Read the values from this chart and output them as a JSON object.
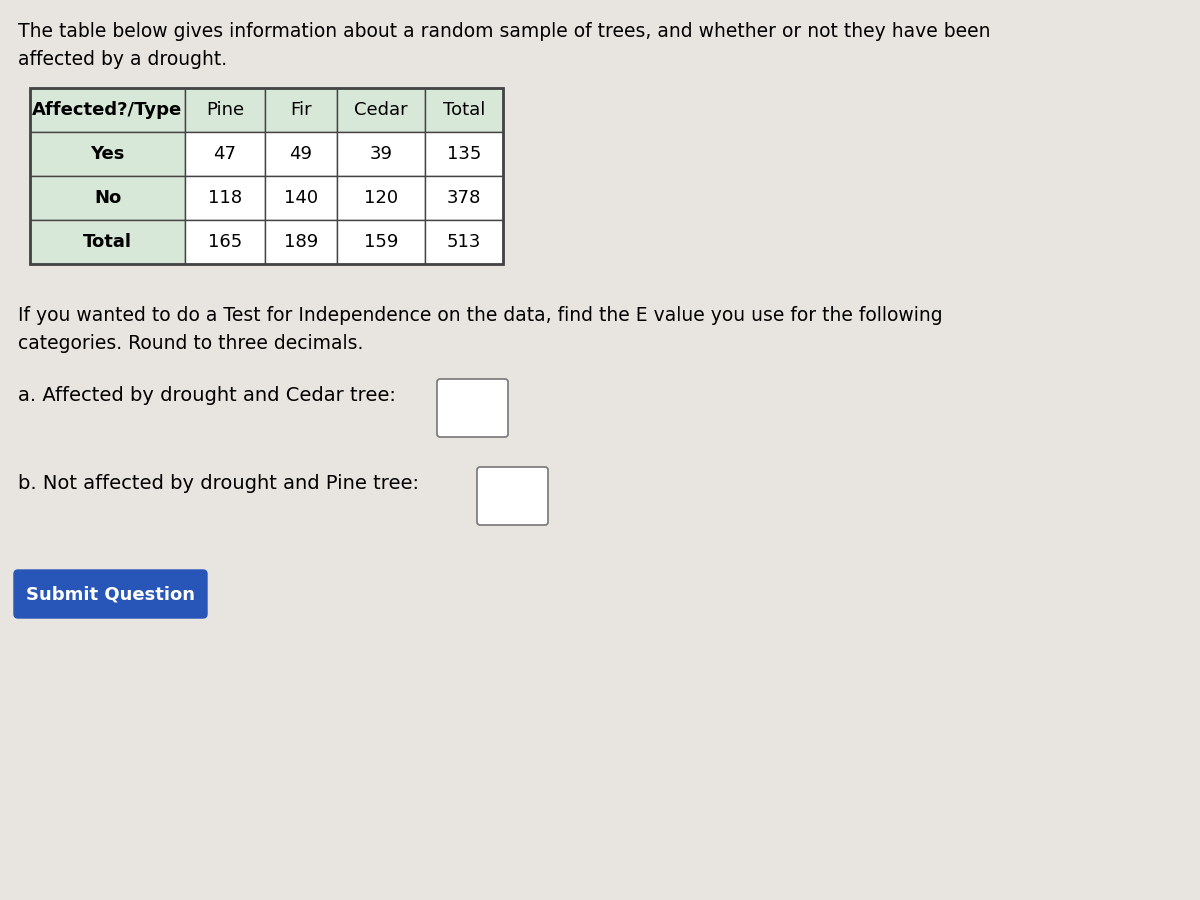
{
  "intro_text_line1": "The table below gives information about a random sample of trees, and whether or not they have been",
  "intro_text_line2": "affected by a drought.",
  "table_headers": [
    "Affected?/Type",
    "Pine",
    "Fir",
    "Cedar",
    "Total"
  ],
  "table_rows": [
    [
      "Yes",
      "47",
      "49",
      "39",
      "135"
    ],
    [
      "No",
      "118",
      "140",
      "120",
      "378"
    ],
    [
      "Total",
      "165",
      "189",
      "159",
      "513"
    ]
  ],
  "question_text_line1": "If you wanted to do a Test for Independence on the data, find the E value you use for the following",
  "question_text_line2": "categories. Round to three decimals.",
  "part_a": "a. Affected by drought and Cedar tree:",
  "part_b": "b. Not affected by drought and Pine tree:",
  "button_text": "Submit Question",
  "button_color": "#2855b8",
  "button_text_color": "#ffffff",
  "bg_color": "#e8e4df",
  "table_first_col_bg": "#d8e8d8",
  "table_header_bg": "#d8e8d8",
  "table_data_bg": "#ffffff",
  "table_border_color": "#444444",
  "text_color": "#000000",
  "font_size_intro": 13.5,
  "font_size_table_header": 13,
  "font_size_table_data": 13,
  "font_size_question": 13.5,
  "font_size_parts": 14,
  "font_size_button": 13
}
